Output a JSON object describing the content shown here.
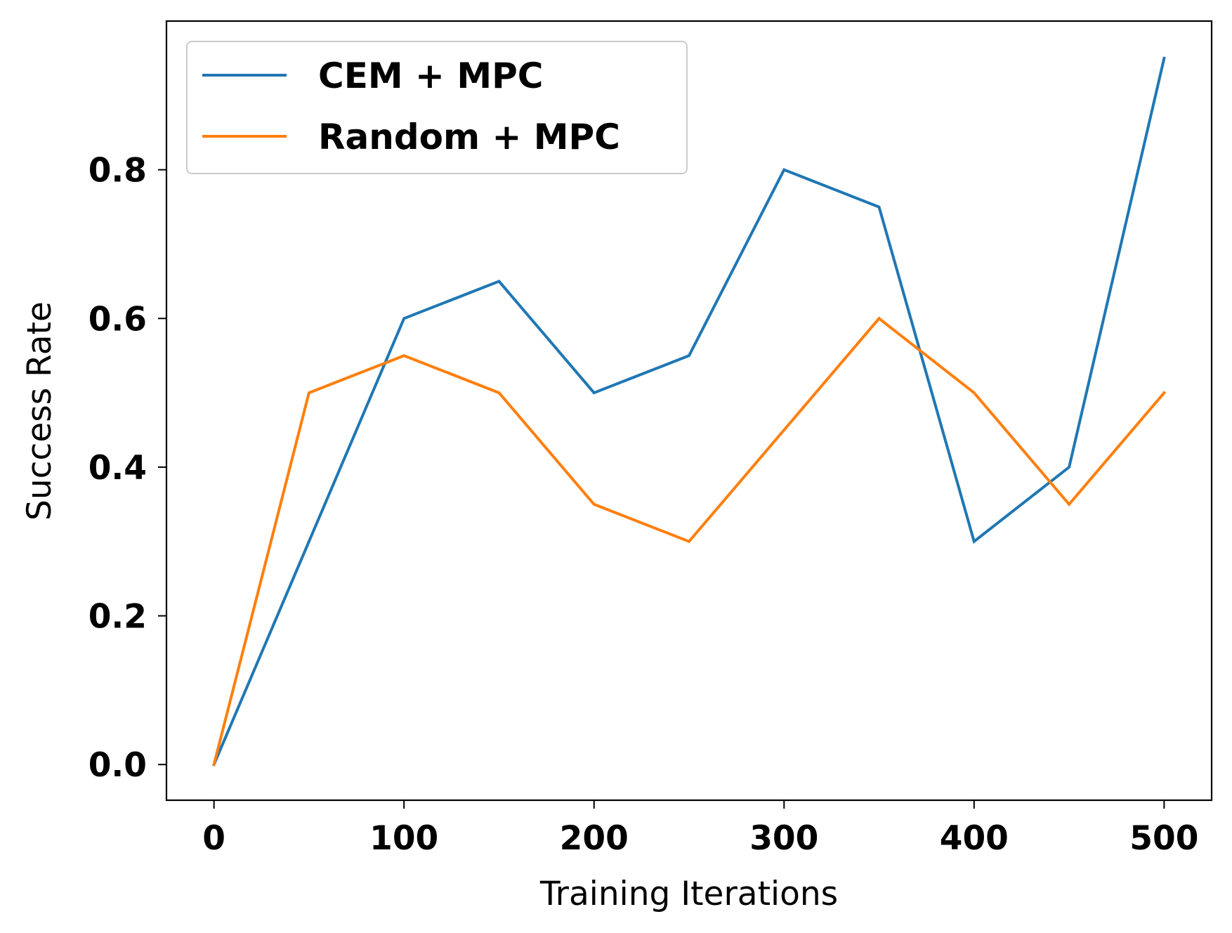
{
  "chart_data": {
    "type": "line",
    "title": "",
    "xlabel": "Training Iterations",
    "ylabel": "Success Rate",
    "xlim": [
      -25,
      525
    ],
    "ylim": [
      -0.048,
      1.0
    ],
    "xticks": [
      0,
      100,
      200,
      300,
      400,
      500
    ],
    "xtick_labels": [
      "0",
      "100",
      "200",
      "300",
      "400",
      "500"
    ],
    "yticks": [
      0.0,
      0.2,
      0.4,
      0.6,
      0.8
    ],
    "ytick_labels": [
      "0.0",
      "0.2",
      "0.4",
      "0.6",
      "0.8"
    ],
    "grid": false,
    "legend_position": "top-left",
    "x": [
      0,
      50,
      100,
      150,
      200,
      250,
      300,
      350,
      400,
      450,
      500
    ],
    "series": [
      {
        "name": "CEM + MPC",
        "color": "#1f77b4",
        "values": [
          0.0,
          0.3,
          0.6,
          0.65,
          0.5,
          0.55,
          0.8,
          0.75,
          0.3,
          0.4,
          0.95
        ]
      },
      {
        "name": "Random + MPC",
        "color": "#ff7f0e",
        "values": [
          0.0,
          0.5,
          0.55,
          0.5,
          0.35,
          0.3,
          0.45,
          0.6,
          0.5,
          0.35,
          0.5
        ]
      }
    ]
  }
}
